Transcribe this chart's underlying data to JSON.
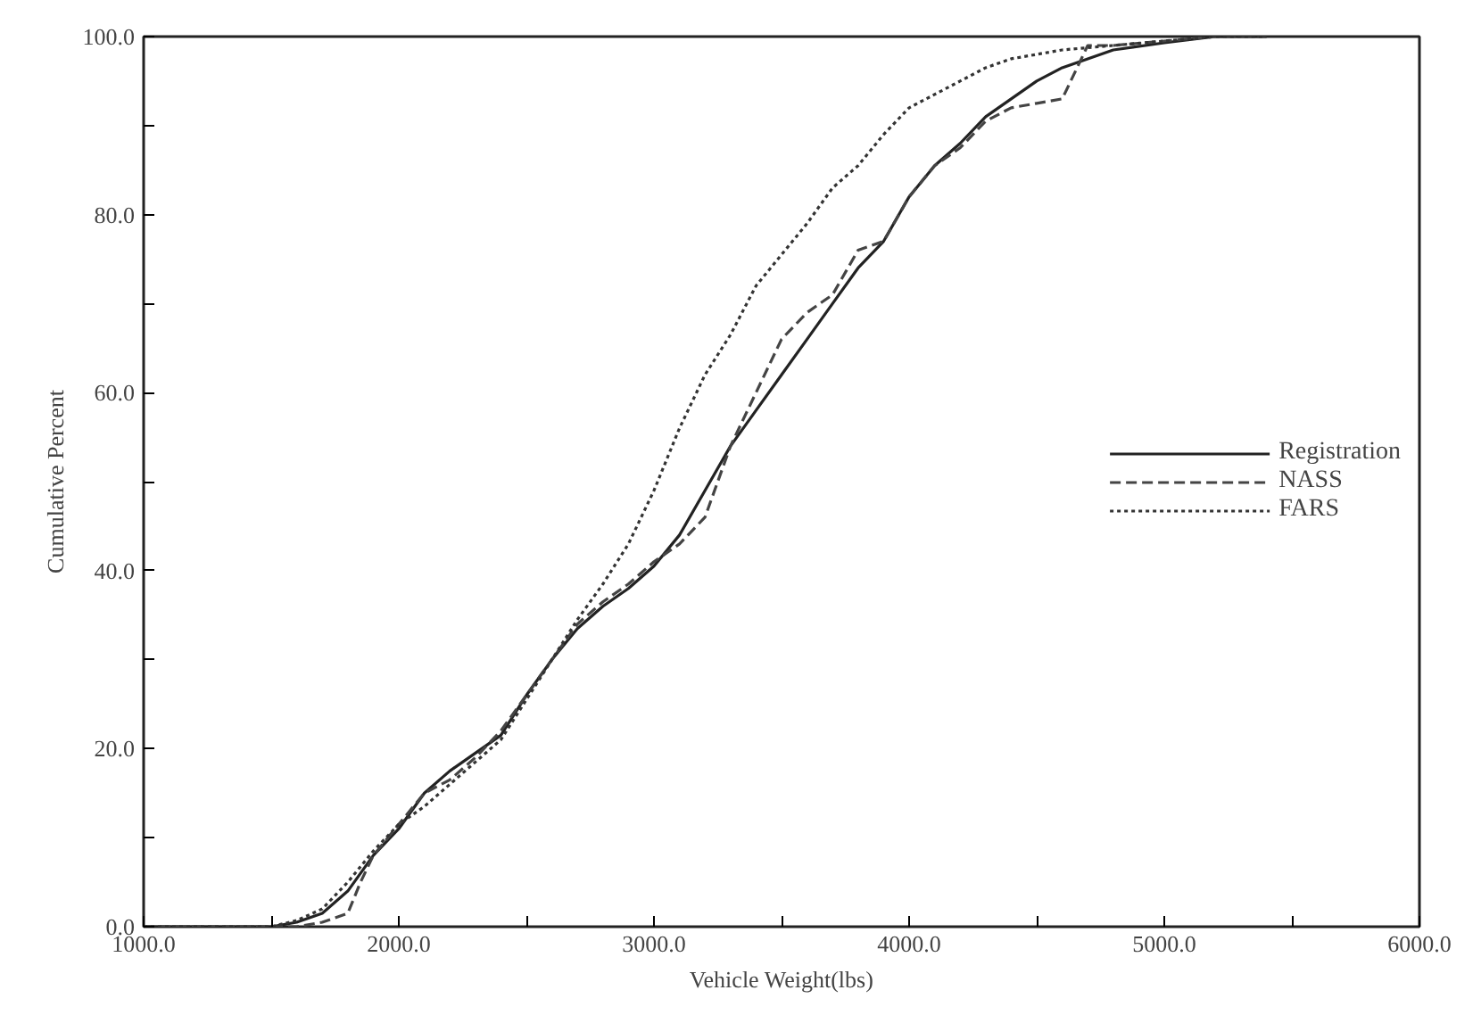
{
  "chart_data": {
    "type": "line",
    "xlabel": "Vehicle Weight(lbs)",
    "ylabel": "Cumulative Percent",
    "xlim": [
      1000,
      6000
    ],
    "ylim": [
      0,
      100
    ],
    "xticks": [
      {
        "value": 1000,
        "label": "1000.0"
      },
      {
        "value": 1500,
        "label": null
      },
      {
        "value": 2000,
        "label": "2000.0"
      },
      {
        "value": 2500,
        "label": null
      },
      {
        "value": 3000,
        "label": "3000.0"
      },
      {
        "value": 3500,
        "label": null
      },
      {
        "value": 4000,
        "label": "4000.0"
      },
      {
        "value": 4500,
        "label": null
      },
      {
        "value": 5000,
        "label": "5000.0"
      },
      {
        "value": 5500,
        "label": null
      },
      {
        "value": 6000,
        "label": "6000.0"
      }
    ],
    "yticks": [
      {
        "value": 0,
        "label": "0.0"
      },
      {
        "value": 10,
        "label": null
      },
      {
        "value": 20,
        "label": "20.0"
      },
      {
        "value": 30,
        "label": null
      },
      {
        "value": 40,
        "label": "40.0"
      },
      {
        "value": 50,
        "label": null
      },
      {
        "value": 60,
        "label": "60.0"
      },
      {
        "value": 70,
        "label": null
      },
      {
        "value": 80,
        "label": "80.0"
      },
      {
        "value": 90,
        "label": null
      },
      {
        "value": 100,
        "label": "100.0"
      }
    ],
    "grid": false,
    "legend": "right",
    "series": [
      {
        "name": "Registration",
        "color": "#222222",
        "line_style": "solid",
        "x": [
          1000,
          1500,
          1600,
          1700,
          1800,
          1900,
          2000,
          2100,
          2200,
          2300,
          2400,
          2500,
          2600,
          2700,
          2800,
          2900,
          3000,
          3100,
          3200,
          3300,
          3400,
          3500,
          3600,
          3700,
          3800,
          3900,
          4000,
          4100,
          4200,
          4300,
          4400,
          4500,
          4600,
          4700,
          4800,
          5000,
          5200,
          5400
        ],
        "values": [
          0,
          0,
          0.5,
          1.5,
          4,
          8,
          11,
          15,
          17.5,
          19.5,
          21.5,
          26,
          30,
          33.5,
          36,
          38,
          40.5,
          44,
          49,
          54,
          58,
          62,
          66,
          70,
          74,
          77,
          82,
          85.5,
          88,
          91,
          93,
          95,
          96.5,
          97.5,
          98.5,
          99.3,
          100,
          100
        ]
      },
      {
        "name": "NASS",
        "color": "#444444",
        "line_style": "dashed",
        "x": [
          1000,
          1600,
          1700,
          1800,
          1850,
          1900,
          2100,
          2200,
          2300,
          2400,
          2500,
          2600,
          2700,
          2800,
          2900,
          3000,
          3100,
          3200,
          3300,
          3400,
          3500,
          3600,
          3700,
          3800,
          3900,
          4000,
          4100,
          4200,
          4300,
          4400,
          4500,
          4600,
          4700,
          4800,
          5000,
          5200,
          5400
        ],
        "values": [
          0,
          0,
          0.5,
          1.5,
          5,
          8,
          15,
          16.5,
          19,
          22,
          26,
          30,
          34,
          36.5,
          38.5,
          41,
          43,
          46,
          54,
          60,
          66,
          69,
          71,
          76,
          77,
          82,
          85.5,
          87.5,
          90.5,
          92,
          92.5,
          93,
          99,
          99,
          99.5,
          100,
          100
        ]
      },
      {
        "name": "FARS",
        "color": "#333333",
        "line_style": "dotted",
        "x": [
          1000,
          1500,
          1600,
          1700,
          1800,
          1900,
          2000,
          2100,
          2200,
          2300,
          2400,
          2500,
          2600,
          2700,
          2800,
          2900,
          3000,
          3100,
          3200,
          3300,
          3400,
          3500,
          3600,
          3700,
          3800,
          3900,
          4000,
          4100,
          4200,
          4300,
          4400,
          4500,
          4600,
          4800,
          5000,
          5200,
          5400
        ],
        "values": [
          0,
          0,
          0.7,
          2,
          5,
          8.5,
          11.5,
          13.5,
          16,
          18.5,
          21,
          25.5,
          30,
          34.5,
          38.5,
          43,
          49,
          56,
          62,
          66.5,
          72,
          75.5,
          79,
          83,
          85.5,
          89,
          92,
          93.5,
          95,
          96.5,
          97.5,
          98,
          98.5,
          99,
          99.5,
          100,
          100
        ]
      }
    ]
  }
}
